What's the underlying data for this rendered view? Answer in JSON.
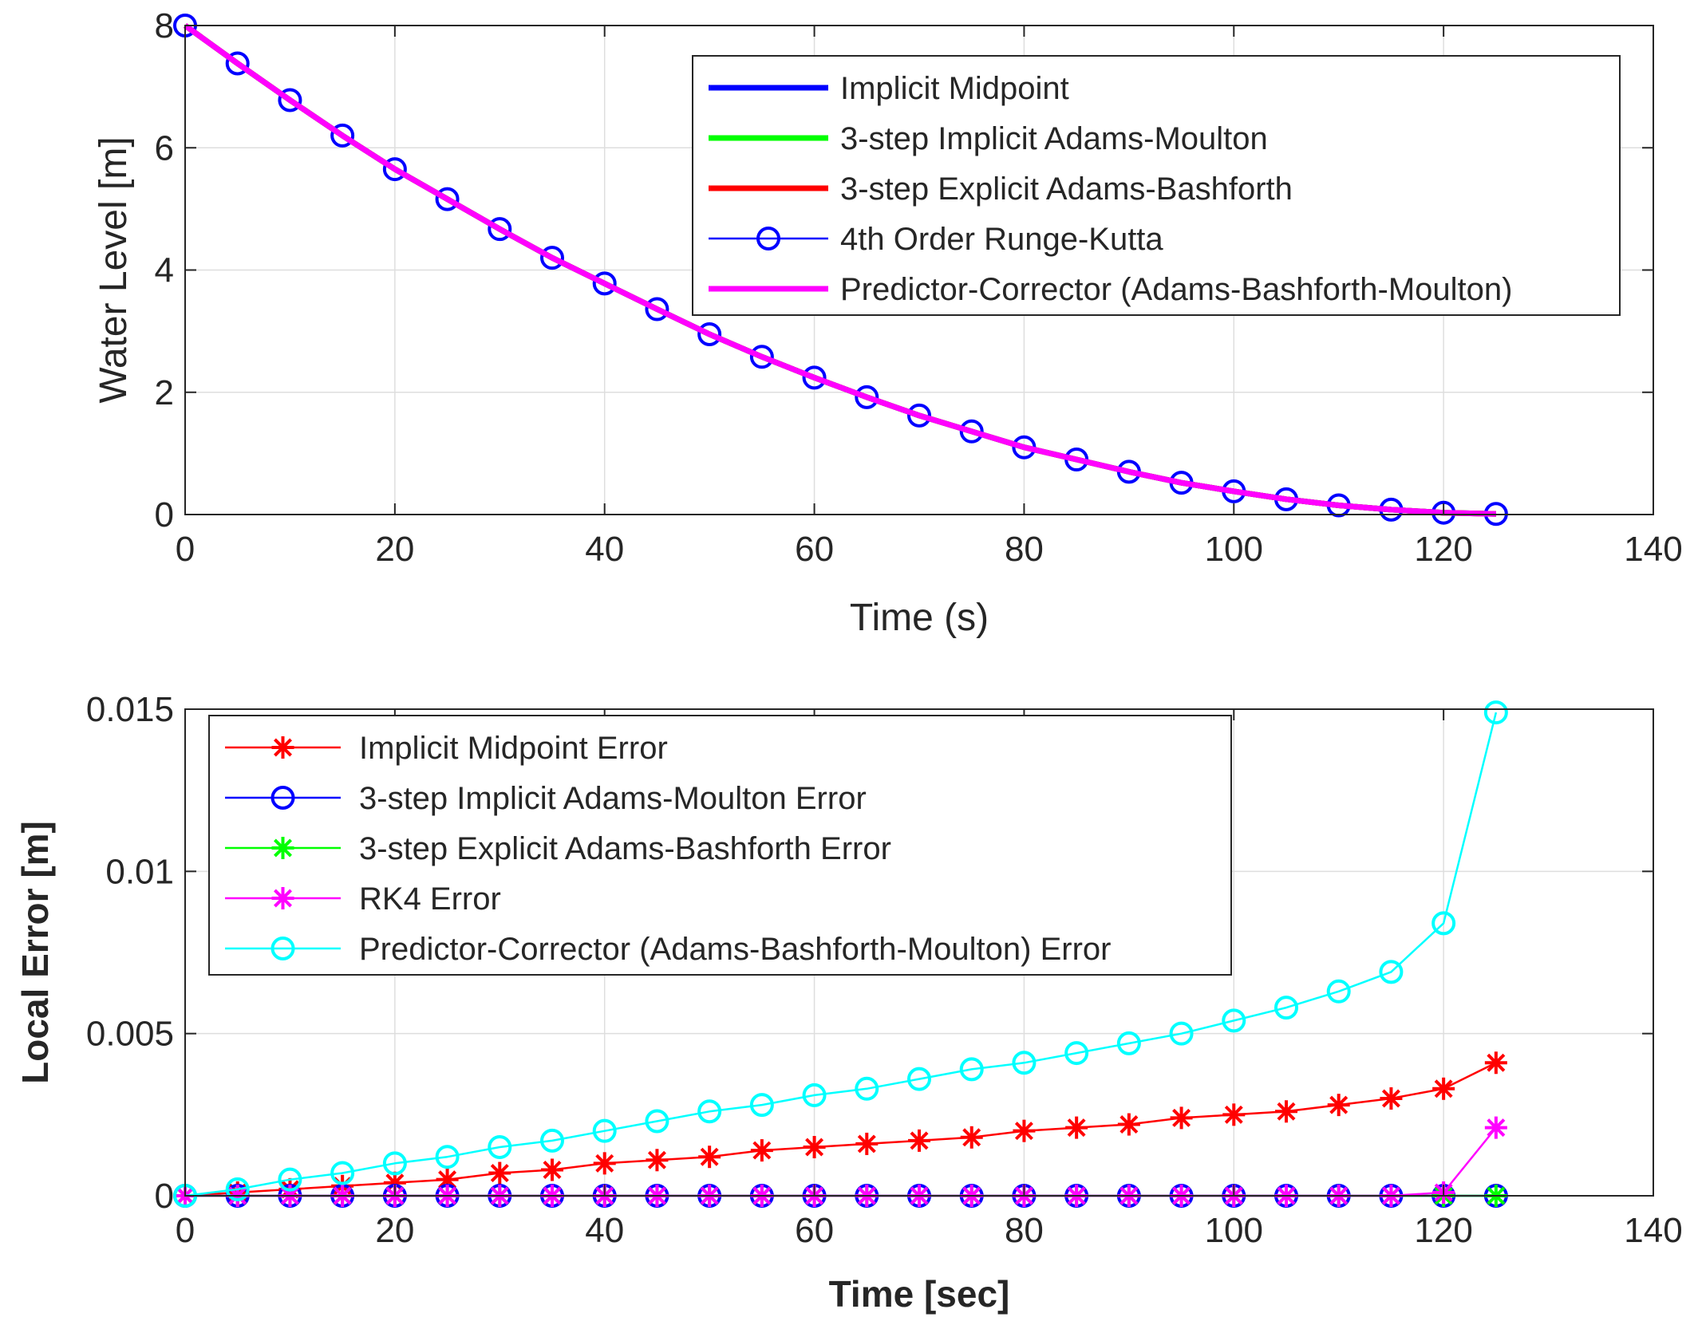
{
  "chart_data": [
    {
      "type": "line",
      "xlabel": "Time (s)",
      "ylabel": "Water Level [m]",
      "xlim": [
        0,
        140
      ],
      "ylim": [
        0,
        8
      ],
      "xticks": [
        "0",
        "20",
        "40",
        "60",
        "80",
        "100",
        "120",
        "140"
      ],
      "yticks": [
        "0",
        "2",
        "4",
        "6",
        "8"
      ],
      "grid": true,
      "legend_position": "top-right",
      "x": [
        0,
        5,
        10,
        15,
        20,
        25,
        30,
        35,
        40,
        45,
        50,
        55,
        60,
        65,
        70,
        75,
        80,
        85,
        90,
        95,
        100,
        105,
        110,
        115,
        120,
        125
      ],
      "series": [
        {
          "name": "Implicit Midpoint",
          "color": "#0000ff",
          "marker": "none",
          "values": [
            8.0,
            7.38,
            6.78,
            6.2,
            5.65,
            5.16,
            4.67,
            4.2,
            3.78,
            3.36,
            2.95,
            2.58,
            2.24,
            1.92,
            1.62,
            1.36,
            1.1,
            0.9,
            0.7,
            0.52,
            0.38,
            0.25,
            0.15,
            0.08,
            0.03,
            0.01
          ]
        },
        {
          "name": "3-step Implicit Adams-Moulton",
          "color": "#00ff00",
          "marker": "none",
          "values": [
            8.0,
            7.38,
            6.78,
            6.2,
            5.65,
            5.16,
            4.67,
            4.2,
            3.78,
            3.36,
            2.95,
            2.58,
            2.24,
            1.92,
            1.62,
            1.36,
            1.1,
            0.9,
            0.7,
            0.52,
            0.38,
            0.25,
            0.15,
            0.08,
            0.03,
            0.01
          ]
        },
        {
          "name": "3-step Explicit Adams-Bashforth",
          "color": "#ff0000",
          "marker": "none",
          "values": [
            8.0,
            7.38,
            6.78,
            6.2,
            5.65,
            5.16,
            4.67,
            4.2,
            3.78,
            3.36,
            2.95,
            2.58,
            2.24,
            1.92,
            1.62,
            1.36,
            1.1,
            0.9,
            0.7,
            0.52,
            0.38,
            0.25,
            0.15,
            0.08,
            0.03,
            0.01
          ]
        },
        {
          "name": "4th Order Runge-Kutta",
          "color": "#0000ff",
          "marker": "circle",
          "values": [
            8.0,
            7.38,
            6.78,
            6.2,
            5.65,
            5.16,
            4.67,
            4.2,
            3.78,
            3.36,
            2.95,
            2.58,
            2.24,
            1.92,
            1.62,
            1.36,
            1.1,
            0.9,
            0.7,
            0.52,
            0.38,
            0.25,
            0.15,
            0.08,
            0.03,
            0.01
          ]
        },
        {
          "name": "Predictor-Corrector (Adams-Bashforth-Moulton)",
          "color": "#ff00ff",
          "marker": "none",
          "values": [
            8.0,
            7.38,
            6.78,
            6.2,
            5.65,
            5.16,
            4.67,
            4.2,
            3.78,
            3.36,
            2.95,
            2.58,
            2.24,
            1.92,
            1.62,
            1.36,
            1.1,
            0.9,
            0.7,
            0.52,
            0.38,
            0.25,
            0.15,
            0.08,
            0.03,
            0.01
          ]
        }
      ]
    },
    {
      "type": "line",
      "xlabel": "Time [sec]",
      "ylabel": "Local Error [m]",
      "xlim": [
        0,
        140
      ],
      "ylim": [
        0,
        0.015
      ],
      "xticks": [
        "0",
        "20",
        "40",
        "60",
        "80",
        "100",
        "120",
        "140"
      ],
      "yticks": [
        "0",
        "0.005",
        "0.01",
        "0.015"
      ],
      "grid": true,
      "legend_position": "top-left",
      "x": [
        0,
        5,
        10,
        15,
        20,
        25,
        30,
        35,
        40,
        45,
        50,
        55,
        60,
        65,
        70,
        75,
        80,
        85,
        90,
        95,
        100,
        105,
        110,
        115,
        120,
        125
      ],
      "series": [
        {
          "name": "Implicit Midpoint Error",
          "color": "#ff0000",
          "marker": "asterisk",
          "values": [
            0,
            0.0001,
            0.0002,
            0.0003,
            0.0004,
            0.0005,
            0.0007,
            0.0008,
            0.001,
            0.0011,
            0.0012,
            0.0014,
            0.0015,
            0.0016,
            0.0017,
            0.0018,
            0.002,
            0.0021,
            0.0022,
            0.0024,
            0.0025,
            0.0026,
            0.0028,
            0.003,
            0.0033,
            0.0041
          ]
        },
        {
          "name": "3-step Implicit Adams-Moulton Error",
          "color": "#0000ff",
          "marker": "circle",
          "values": [
            0,
            0,
            0,
            0,
            0,
            0,
            0,
            0,
            0,
            0,
            0,
            0,
            0,
            0,
            0,
            0,
            0,
            0,
            0,
            0,
            0,
            0,
            0,
            0,
            0,
            0
          ]
        },
        {
          "name": "3-step Explicit Adams-Bashforth Error",
          "color": "#00ff00",
          "marker": "asterisk",
          "values": [
            0,
            0,
            0,
            0,
            0,
            0,
            0,
            0,
            0,
            0,
            0,
            0,
            0,
            0,
            0,
            0,
            0,
            0,
            0,
            0,
            0,
            0,
            0,
            0,
            0,
            0
          ]
        },
        {
          "name": "RK4 Error",
          "color": "#ff00ff",
          "marker": "asterisk",
          "values": [
            0,
            0,
            0,
            0,
            0,
            0,
            0,
            0,
            0,
            0,
            0,
            0,
            0,
            0,
            0,
            0,
            0,
            0,
            0,
            0,
            0,
            0,
            0,
            0,
            0.0001,
            0.0021
          ]
        },
        {
          "name": "Predictor-Corrector (Adams-Bashforth-Moulton) Error",
          "color": "#00ffff",
          "marker": "circle",
          "values": [
            0,
            0.0002,
            0.0005,
            0.0007,
            0.001,
            0.0012,
            0.0015,
            0.0017,
            0.002,
            0.0023,
            0.0026,
            0.0028,
            0.0031,
            0.0033,
            0.0036,
            0.0039,
            0.0041,
            0.0044,
            0.0047,
            0.005,
            0.0054,
            0.0058,
            0.0063,
            0.0069,
            0.0084,
            0.0149
          ]
        }
      ]
    }
  ]
}
